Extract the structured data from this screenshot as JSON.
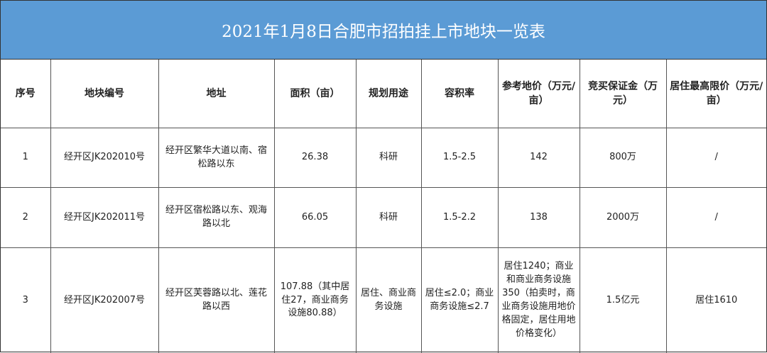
{
  "title": "2021年1月8日合肥市招拍挂上市地块一览表",
  "headers": [
    "序号",
    "地块编号",
    "地址",
    "面积（亩）",
    "规划用途",
    "容积率",
    "参考地价（万元/亩）",
    "竞买保证金（万元）",
    "居住最高限价（万元/亩）"
  ],
  "rows": [
    {
      "no": "1",
      "id": "经开区JK202010号",
      "addr": "经开区繁华大道以南、宿松路以东",
      "area": "26.38",
      "use": "科研",
      "far": "1.5-2.5",
      "price": "142",
      "deposit": "800万",
      "cap": "/"
    },
    {
      "no": "2",
      "id": "经开区JK202011号",
      "addr": "经开区宿松路以东、观海路以北",
      "area": "66.05",
      "use": "科研",
      "far": "1.5-2.2",
      "price": "138",
      "deposit": "2000万",
      "cap": "/"
    },
    {
      "no": "3",
      "id": "经开区JK202007号",
      "addr": "经开区芙蓉路以北、莲花路以西",
      "area": "107.88（其中居住27，商业商务设施80.88）",
      "use": "居住、商业商务设施",
      "far": "居住≤2.0；商业商务设施≤2.7",
      "price": "居住1240；商业和商业商务设施350（拍卖时，商业商务设施用地价格固定，居住用地价格变化）",
      "deposit": "1.5亿元",
      "cap": "居住1610"
    }
  ]
}
